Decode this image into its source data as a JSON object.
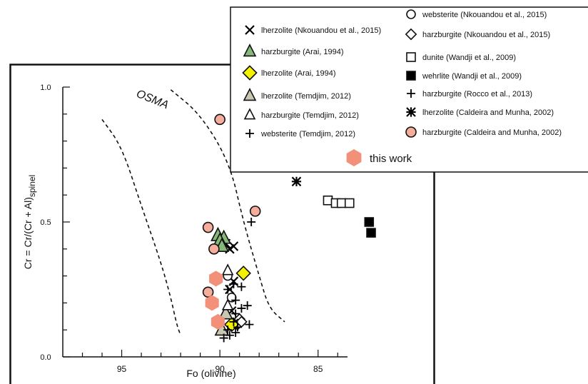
{
  "chart_data": {
    "type": "scatter",
    "title": "",
    "xlabel": "Fo (olivine)",
    "ylabel": "Cr = Cr/(Cr + Al)",
    "ylabel_sub": "spinel",
    "x_reversed": true,
    "xlim": [
      98,
      83.5
    ],
    "ylim": [
      0,
      1.0
    ],
    "x_ticks": [
      {
        "value": 95,
        "label": "95"
      },
      {
        "value": 90,
        "label": "90"
      },
      {
        "value": 85,
        "label": "85"
      }
    ],
    "y_ticks": [
      {
        "value": 0.0,
        "label": "0.0"
      },
      {
        "value": 0.5,
        "label": "0.5"
      },
      {
        "value": 1.0,
        "label": "1.0"
      }
    ],
    "grid": false,
    "legend_placement": "top-right",
    "annotation": "OSMA",
    "osma_curves": [
      {
        "name": "left",
        "points": [
          [
            96.0,
            0.88
          ],
          [
            95.0,
            0.78
          ],
          [
            94.0,
            0.56
          ],
          [
            93.0,
            0.35
          ],
          [
            92.5,
            0.22
          ],
          [
            92.2,
            0.12
          ],
          [
            92.0,
            0.08
          ]
        ]
      },
      {
        "name": "right",
        "points": [
          [
            92.5,
            0.99
          ],
          [
            91.0,
            0.9
          ],
          [
            89.5,
            0.72
          ],
          [
            88.8,
            0.5
          ],
          [
            88.0,
            0.3
          ],
          [
            87.5,
            0.18
          ],
          [
            86.7,
            0.13
          ]
        ]
      }
    ],
    "series": [
      {
        "name": "lherzolite (Nkouandou et al., 2015)",
        "marker": "x",
        "color": "#000000",
        "points": [
          [
            89.7,
            0.42
          ],
          [
            89.3,
            0.41
          ],
          [
            89.5,
            0.4
          ],
          [
            89.3,
            0.28
          ],
          [
            89.5,
            0.25
          ],
          [
            89.4,
            0.17
          ]
        ]
      },
      {
        "name": "websterite (Nkouandou et al., 2015)",
        "marker": "circle-open",
        "color": "#000000",
        "points": [
          [
            89.6,
            0.3
          ],
          [
            89.4,
            0.22
          ]
        ]
      },
      {
        "name": "harzburgite (Nkouandou et al., 2015)",
        "marker": "diamond-open",
        "color": "#000000",
        "points": [
          [
            89.0,
            0.14
          ],
          [
            89.1,
            0.12
          ],
          [
            88.9,
            0.13
          ]
        ]
      },
      {
        "name": "harzburgite (Arai, 1994)",
        "marker": "triangle",
        "color": "#86b87a",
        "points": [
          [
            90.1,
            0.45
          ],
          [
            89.8,
            0.44
          ],
          [
            90.0,
            0.43
          ],
          [
            89.9,
            0.41
          ]
        ]
      },
      {
        "name": "lherzolite (Arai, 1994)",
        "marker": "diamond",
        "color": "#f5f200",
        "points": [
          [
            88.8,
            0.31
          ],
          [
            89.4,
            0.12
          ]
        ]
      },
      {
        "name": "lherzolite (Temdjim, 2012)",
        "marker": "triangle",
        "color": "#c9c7b4",
        "points": [
          [
            89.7,
            0.16
          ],
          [
            89.9,
            0.1
          ]
        ]
      },
      {
        "name": "harzburgite (Temdjim, 2012)",
        "marker": "triangle-open",
        "color": "#000000",
        "points": [
          [
            89.6,
            0.32
          ],
          [
            89.6,
            0.19
          ]
        ]
      },
      {
        "name": "websterite (Temdjim, 2012)",
        "marker": "plus",
        "color": "#000000",
        "points": [
          [
            89.3,
            0.27
          ],
          [
            89.6,
            0.25
          ],
          [
            88.9,
            0.26
          ],
          [
            89.2,
            0.21
          ],
          [
            88.9,
            0.18
          ],
          [
            88.6,
            0.19
          ],
          [
            89.2,
            0.16
          ],
          [
            89.3,
            0.13
          ],
          [
            89.1,
            0.11
          ],
          [
            88.5,
            0.12
          ],
          [
            89.6,
            0.1
          ],
          [
            89.2,
            0.09
          ],
          [
            89.5,
            0.08
          ],
          [
            89.8,
            0.07
          ]
        ]
      },
      {
        "name": "dunite (Wandji et al., 2009)",
        "marker": "square-open",
        "color": "#000000",
        "points": [
          [
            84.5,
            0.58
          ],
          [
            84.1,
            0.57
          ],
          [
            83.8,
            0.57
          ],
          [
            83.4,
            0.57
          ]
        ]
      },
      {
        "name": "wehrlite (Wandji et al., 2009)",
        "marker": "square",
        "color": "#000000",
        "points": [
          [
            82.4,
            0.5
          ],
          [
            82.3,
            0.46
          ]
        ]
      },
      {
        "name": "harzburgite (Rocco et al., 2013)",
        "marker": "plus",
        "color": "#000000",
        "points": [
          [
            88.4,
            0.5
          ]
        ]
      },
      {
        "name": "lherzolite (Caldeira and Munha, 2002)",
        "marker": "asterisk",
        "color": "#000000",
        "points": [
          [
            86.1,
            0.65
          ]
        ]
      },
      {
        "name": "harzburgite (Caldeira and Munha, 2002)",
        "marker": "circle",
        "color": "#f5ad9c",
        "points": [
          [
            90.0,
            0.88
          ],
          [
            88.2,
            0.54
          ],
          [
            90.6,
            0.48
          ],
          [
            90.3,
            0.4
          ],
          [
            90.6,
            0.24
          ]
        ]
      },
      {
        "name": "this work",
        "marker": "hexagon",
        "color": "#f2907a",
        "points": [
          [
            90.2,
            0.29
          ],
          [
            90.4,
            0.2
          ],
          [
            90.1,
            0.13
          ]
        ]
      }
    ]
  }
}
